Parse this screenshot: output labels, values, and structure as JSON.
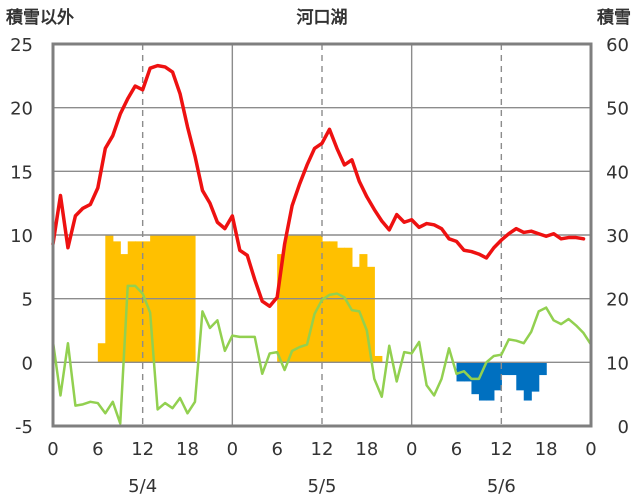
{
  "chart_data": {
    "type": "line",
    "title": "河口湖",
    "left_axis_label": "積雪以外",
    "right_axis_label": "積雪",
    "ylim_left": [
      -5,
      25
    ],
    "ylim_right": [
      0,
      60
    ],
    "yticks_left": [
      "25",
      "20",
      "15",
      "10",
      "5",
      "0",
      "-5"
    ],
    "yticks_right": [
      "60",
      "50",
      "40",
      "30",
      "20",
      "10",
      "0"
    ],
    "x_hours": [
      0,
      72
    ],
    "xticks": [
      "0",
      "6",
      "12",
      "18",
      "0",
      "6",
      "12",
      "18",
      "0",
      "6",
      "12",
      "18",
      "0"
    ],
    "day_labels": [
      "5/4",
      "5/5",
      "5/6"
    ],
    "grid": true,
    "series": [
      {
        "key": "red_line",
        "color": "#ee1111",
        "points": [
          [
            0,
            9.3
          ],
          [
            1,
            13.1
          ],
          [
            2,
            9.0
          ],
          [
            3,
            11.5
          ],
          [
            4,
            12.1
          ],
          [
            5,
            12.4
          ],
          [
            6,
            13.7
          ],
          [
            7,
            16.8
          ],
          [
            8,
            17.8
          ],
          [
            9,
            19.5
          ],
          [
            10,
            20.7
          ],
          [
            11,
            21.7
          ],
          [
            12,
            21.4
          ],
          [
            13,
            23.1
          ],
          [
            14,
            23.3
          ],
          [
            15,
            23.2
          ],
          [
            16,
            22.8
          ],
          [
            17,
            21.1
          ],
          [
            18,
            18.5
          ],
          [
            19,
            16.2
          ],
          [
            20,
            13.5
          ],
          [
            21,
            12.5
          ],
          [
            22,
            11.0
          ],
          [
            23,
            10.5
          ],
          [
            24,
            11.5
          ],
          [
            25,
            8.8
          ],
          [
            26,
            8.4
          ],
          [
            27,
            6.5
          ],
          [
            28,
            4.8
          ],
          [
            29,
            4.4
          ],
          [
            30,
            5.1
          ],
          [
            31,
            9.3
          ],
          [
            32,
            12.3
          ],
          [
            33,
            14.0
          ],
          [
            34,
            15.5
          ],
          [
            35,
            16.8
          ],
          [
            36,
            17.2
          ],
          [
            37,
            18.3
          ],
          [
            38,
            16.8
          ],
          [
            39,
            15.5
          ],
          [
            40,
            15.9
          ],
          [
            41,
            14.2
          ],
          [
            42,
            13.0
          ],
          [
            43,
            12.0
          ],
          [
            44,
            11.1
          ],
          [
            45,
            10.4
          ],
          [
            46,
            11.6
          ],
          [
            47,
            11.0
          ],
          [
            48,
            11.2
          ],
          [
            49,
            10.6
          ],
          [
            50,
            10.9
          ],
          [
            51,
            10.8
          ],
          [
            52,
            10.5
          ],
          [
            53,
            9.7
          ],
          [
            54,
            9.5
          ],
          [
            55,
            8.8
          ],
          [
            56,
            8.7
          ],
          [
            57,
            8.5
          ],
          [
            58,
            8.2
          ],
          [
            59,
            9.0
          ],
          [
            60,
            9.6
          ],
          [
            61,
            10.1
          ],
          [
            62,
            10.5
          ],
          [
            63,
            10.2
          ],
          [
            64,
            10.3
          ],
          [
            65,
            10.1
          ],
          [
            66,
            9.9
          ],
          [
            67,
            10.1
          ],
          [
            68,
            9.7
          ],
          [
            69,
            9.8
          ],
          [
            70,
            9.8
          ],
          [
            71,
            9.7
          ]
        ]
      },
      {
        "key": "green_line",
        "color": "#92d050",
        "points": [
          [
            0,
            1.6
          ],
          [
            1,
            -2.6
          ],
          [
            2,
            1.5
          ],
          [
            3,
            -3.4
          ],
          [
            4,
            -3.3
          ],
          [
            5,
            -3.1
          ],
          [
            6,
            -3.2
          ],
          [
            7,
            -4.0
          ],
          [
            8,
            -3.1
          ],
          [
            9,
            -4.8
          ],
          [
            10,
            6.0
          ],
          [
            11,
            6.0
          ],
          [
            12,
            5.4
          ],
          [
            13,
            3.9
          ],
          [
            14,
            -3.7
          ],
          [
            15,
            -3.2
          ],
          [
            16,
            -3.6
          ],
          [
            17,
            -2.8
          ],
          [
            18,
            -4.0
          ],
          [
            19,
            -3.1
          ],
          [
            20,
            4.0
          ],
          [
            21,
            2.7
          ],
          [
            22,
            3.3
          ],
          [
            23,
            0.9
          ],
          [
            24,
            2.1
          ],
          [
            25,
            2.0
          ],
          [
            26,
            2.0
          ],
          [
            27,
            2.0
          ],
          [
            28,
            -0.9
          ],
          [
            29,
            0.7
          ],
          [
            30,
            0.8
          ],
          [
            31,
            -0.6
          ],
          [
            32,
            0.9
          ],
          [
            33,
            1.2
          ],
          [
            34,
            1.4
          ],
          [
            35,
            3.8
          ],
          [
            36,
            4.9
          ],
          [
            37,
            5.3
          ],
          [
            38,
            5.4
          ],
          [
            39,
            5.1
          ],
          [
            40,
            4.1
          ],
          [
            41,
            4.0
          ],
          [
            42,
            2.5
          ],
          [
            43,
            -1.3
          ],
          [
            44,
            -2.7
          ],
          [
            45,
            1.3
          ],
          [
            46,
            -1.5
          ],
          [
            47,
            0.8
          ],
          [
            48,
            0.7
          ],
          [
            49,
            1.6
          ],
          [
            50,
            -1.8
          ],
          [
            51,
            -2.6
          ],
          [
            52,
            -1.3
          ],
          [
            53,
            1.1
          ],
          [
            54,
            -0.9
          ],
          [
            55,
            -0.7
          ],
          [
            56,
            -1.3
          ],
          [
            57,
            -1.3
          ],
          [
            58,
            0.0
          ],
          [
            59,
            0.5
          ],
          [
            60,
            0.6
          ],
          [
            61,
            1.8
          ],
          [
            62,
            1.7
          ],
          [
            63,
            1.5
          ],
          [
            64,
            2.4
          ],
          [
            65,
            4.0
          ],
          [
            66,
            4.3
          ],
          [
            67,
            3.3
          ],
          [
            68,
            3.0
          ],
          [
            69,
            3.4
          ],
          [
            70,
            2.9
          ],
          [
            71,
            2.3
          ],
          [
            72,
            1.4
          ]
        ]
      }
    ],
    "bars": [
      {
        "key": "orange_bars",
        "color": "#ffc000",
        "axis": "right",
        "base": 10,
        "values": [
          [
            6,
            13
          ],
          [
            7,
            30
          ],
          [
            8,
            29
          ],
          [
            9,
            27
          ],
          [
            10,
            29
          ],
          [
            11,
            29
          ],
          [
            12,
            29
          ],
          [
            13,
            30
          ],
          [
            14,
            30
          ],
          [
            15,
            30
          ],
          [
            16,
            30
          ],
          [
            17,
            30
          ],
          [
            18,
            30
          ],
          [
            30,
            27
          ],
          [
            31,
            30
          ],
          [
            32,
            30
          ],
          [
            33,
            30
          ],
          [
            34,
            30
          ],
          [
            35,
            30
          ],
          [
            36,
            29
          ],
          [
            37,
            29
          ],
          [
            38,
            28
          ],
          [
            39,
            28
          ],
          [
            40,
            25
          ],
          [
            41,
            27
          ],
          [
            42,
            25
          ],
          [
            43,
            11
          ]
        ]
      },
      {
        "key": "blue_bars",
        "color": "#0070c0",
        "axis": "left",
        "base": 0,
        "values": [
          [
            54,
            -1.5
          ],
          [
            55,
            -1.5
          ],
          [
            56,
            -2.5
          ],
          [
            57,
            -3.0
          ],
          [
            58,
            -3.0
          ],
          [
            59,
            -2.2
          ],
          [
            60,
            -1.0
          ],
          [
            61,
            -1.0
          ],
          [
            62,
            -2.2
          ],
          [
            63,
            -3.0
          ],
          [
            64,
            -2.3
          ],
          [
            65,
            -1.0
          ]
        ]
      }
    ]
  }
}
